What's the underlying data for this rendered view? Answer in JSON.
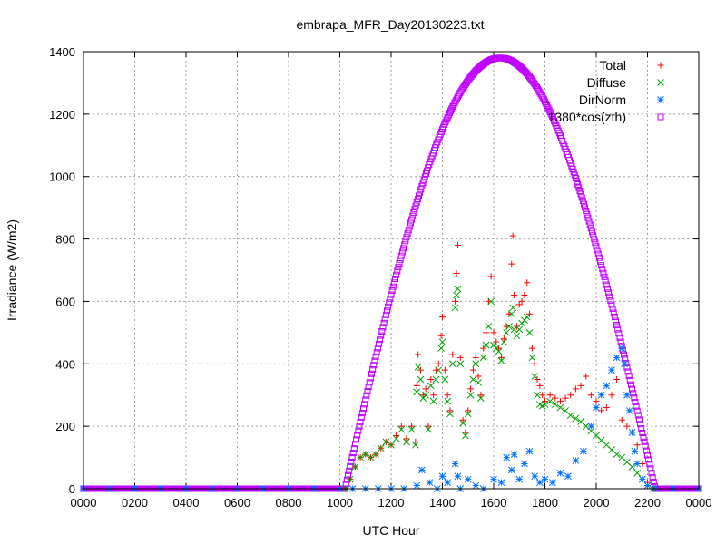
{
  "chart_data": {
    "type": "scatter",
    "title": "embrapa_MFR_Day20130223.txt",
    "xlabel": "UTC Hour",
    "ylabel": "Irradiance (W/m2)",
    "xlim": [
      0,
      24
    ],
    "ylim": [
      0,
      1400
    ],
    "x_ticks": [
      0,
      2,
      4,
      6,
      8,
      10,
      12,
      14,
      16,
      18,
      20,
      22,
      24
    ],
    "x_tick_labels": [
      "0000",
      "0200",
      "0400",
      "0600",
      "0800",
      "1000",
      "1200",
      "1400",
      "1600",
      "1800",
      "2000",
      "2200",
      "0000"
    ],
    "y_ticks": [
      0,
      200,
      400,
      600,
      800,
      1000,
      1200,
      1400
    ],
    "y_tick_labels": [
      "0",
      "200",
      "400",
      "600",
      "800",
      "1000",
      "1200",
      "1400"
    ],
    "grid": true,
    "legend_position": "top-right",
    "series": [
      {
        "name": "Total",
        "color": "#ff0000",
        "marker": "plus",
        "points": [
          [
            10.2,
            0
          ],
          [
            10.4,
            30
          ],
          [
            10.6,
            70
          ],
          [
            10.8,
            100
          ],
          [
            11.0,
            110
          ],
          [
            11.2,
            100
          ],
          [
            11.4,
            110
          ],
          [
            11.6,
            130
          ],
          [
            11.8,
            150
          ],
          [
            12.0,
            140
          ],
          [
            12.2,
            170
          ],
          [
            12.4,
            200
          ],
          [
            12.6,
            160
          ],
          [
            12.8,
            200
          ],
          [
            12.95,
            150
          ],
          [
            13.0,
            330
          ],
          [
            13.05,
            430
          ],
          [
            13.15,
            380
          ],
          [
            13.25,
            300
          ],
          [
            13.35,
            320
          ],
          [
            13.45,
            200
          ],
          [
            13.55,
            350
          ],
          [
            13.65,
            300
          ],
          [
            13.75,
            380
          ],
          [
            13.85,
            400
          ],
          [
            13.95,
            490
          ],
          [
            14.0,
            550
          ],
          [
            14.1,
            380
          ],
          [
            14.2,
            300
          ],
          [
            14.3,
            250
          ],
          [
            14.4,
            430
          ],
          [
            14.5,
            600
          ],
          [
            14.55,
            690
          ],
          [
            14.6,
            780
          ],
          [
            14.7,
            420
          ],
          [
            14.8,
            220
          ],
          [
            14.9,
            180
          ],
          [
            15.0,
            250
          ],
          [
            15.1,
            320
          ],
          [
            15.2,
            380
          ],
          [
            15.3,
            420
          ],
          [
            15.4,
            360
          ],
          [
            15.5,
            300
          ],
          [
            15.6,
            450
          ],
          [
            15.7,
            500
          ],
          [
            15.8,
            600
          ],
          [
            15.9,
            680
          ],
          [
            16.0,
            500
          ],
          [
            16.1,
            470
          ],
          [
            16.2,
            450
          ],
          [
            16.3,
            420
          ],
          [
            16.4,
            480
          ],
          [
            16.5,
            520
          ],
          [
            16.6,
            560
          ],
          [
            16.7,
            720
          ],
          [
            16.75,
            810
          ],
          [
            16.8,
            620
          ],
          [
            16.9,
            520
          ],
          [
            17.0,
            590
          ],
          [
            17.1,
            600
          ],
          [
            17.2,
            620
          ],
          [
            17.3,
            660
          ],
          [
            17.4,
            560
          ],
          [
            17.5,
            450
          ],
          [
            17.6,
            400
          ],
          [
            17.7,
            350
          ],
          [
            17.8,
            330
          ],
          [
            17.9,
            300
          ],
          [
            18.0,
            280
          ],
          [
            18.2,
            300
          ],
          [
            18.4,
            290
          ],
          [
            18.6,
            280
          ],
          [
            18.8,
            290
          ],
          [
            19.0,
            300
          ],
          [
            19.2,
            320
          ],
          [
            19.4,
            330
          ],
          [
            19.6,
            360
          ],
          [
            19.8,
            300
          ],
          [
            20.0,
            280
          ],
          [
            20.2,
            250
          ],
          [
            20.4,
            260
          ],
          [
            20.6,
            300
          ],
          [
            20.8,
            350
          ],
          [
            21.0,
            220
          ],
          [
            21.2,
            200
          ],
          [
            21.4,
            180
          ],
          [
            21.6,
            140
          ],
          [
            21.8,
            80
          ],
          [
            22.0,
            20
          ],
          [
            22.2,
            0
          ]
        ]
      },
      {
        "name": "Diffuse",
        "color": "#00a000",
        "marker": "cross",
        "points": [
          [
            10.2,
            0
          ],
          [
            10.4,
            30
          ],
          [
            10.6,
            70
          ],
          [
            10.8,
            100
          ],
          [
            11.0,
            110
          ],
          [
            11.2,
            100
          ],
          [
            11.4,
            110
          ],
          [
            11.6,
            130
          ],
          [
            11.8,
            150
          ],
          [
            12.0,
            140
          ],
          [
            12.2,
            160
          ],
          [
            12.4,
            190
          ],
          [
            12.6,
            150
          ],
          [
            12.8,
            190
          ],
          [
            12.95,
            140
          ],
          [
            13.0,
            310
          ],
          [
            13.05,
            390
          ],
          [
            13.15,
            350
          ],
          [
            13.25,
            290
          ],
          [
            13.35,
            300
          ],
          [
            13.45,
            190
          ],
          [
            13.55,
            330
          ],
          [
            13.65,
            280
          ],
          [
            13.75,
            350
          ],
          [
            13.85,
            380
          ],
          [
            13.95,
            450
          ],
          [
            14.0,
            470
          ],
          [
            14.1,
            350
          ],
          [
            14.2,
            280
          ],
          [
            14.3,
            240
          ],
          [
            14.4,
            400
          ],
          [
            14.5,
            580
          ],
          [
            14.55,
            620
          ],
          [
            14.6,
            640
          ],
          [
            14.7,
            400
          ],
          [
            14.8,
            210
          ],
          [
            14.9,
            170
          ],
          [
            15.0,
            240
          ],
          [
            15.1,
            300
          ],
          [
            15.2,
            350
          ],
          [
            15.3,
            400
          ],
          [
            15.4,
            340
          ],
          [
            15.5,
            290
          ],
          [
            15.6,
            420
          ],
          [
            15.7,
            460
          ],
          [
            15.8,
            520
          ],
          [
            15.9,
            600
          ],
          [
            16.0,
            460
          ],
          [
            16.1,
            450
          ],
          [
            16.2,
            440
          ],
          [
            16.3,
            410
          ],
          [
            16.4,
            470
          ],
          [
            16.5,
            500
          ],
          [
            16.6,
            520
          ],
          [
            16.7,
            560
          ],
          [
            16.75,
            580
          ],
          [
            16.8,
            510
          ],
          [
            16.9,
            490
          ],
          [
            17.0,
            510
          ],
          [
            17.1,
            530
          ],
          [
            17.2,
            540
          ],
          [
            17.3,
            550
          ],
          [
            17.4,
            500
          ],
          [
            17.5,
            420
          ],
          [
            17.6,
            360
          ],
          [
            17.7,
            300
          ],
          [
            17.8,
            270
          ],
          [
            17.9,
            265
          ],
          [
            18.0,
            270
          ],
          [
            18.2,
            280
          ],
          [
            18.4,
            270
          ],
          [
            18.6,
            260
          ],
          [
            18.8,
            250
          ],
          [
            19.0,
            235
          ],
          [
            19.2,
            225
          ],
          [
            19.4,
            215
          ],
          [
            19.6,
            200
          ],
          [
            19.8,
            185
          ],
          [
            20.0,
            170
          ],
          [
            20.2,
            155
          ],
          [
            20.4,
            140
          ],
          [
            20.6,
            125
          ],
          [
            20.8,
            110
          ],
          [
            21.0,
            100
          ],
          [
            21.2,
            85
          ],
          [
            21.4,
            70
          ],
          [
            21.6,
            50
          ],
          [
            21.8,
            30
          ],
          [
            22.0,
            10
          ],
          [
            22.2,
            0
          ]
        ]
      },
      {
        "name": "DirNorm",
        "color": "#0070ff",
        "marker": "star",
        "points": [
          [
            0,
            0
          ],
          [
            1,
            0
          ],
          [
            2,
            0
          ],
          [
            3,
            0
          ],
          [
            4,
            0
          ],
          [
            5,
            0
          ],
          [
            6,
            0
          ],
          [
            7,
            0
          ],
          [
            8,
            0
          ],
          [
            9,
            0
          ],
          [
            10,
            0
          ],
          [
            10.5,
            0
          ],
          [
            11,
            0
          ],
          [
            11.5,
            0
          ],
          [
            12,
            0
          ],
          [
            12.5,
            0
          ],
          [
            13.0,
            10
          ],
          [
            13.2,
            60
          ],
          [
            13.5,
            20
          ],
          [
            13.8,
            0
          ],
          [
            14.0,
            40
          ],
          [
            14.2,
            20
          ],
          [
            14.5,
            80
          ],
          [
            14.6,
            40
          ],
          [
            14.7,
            0
          ],
          [
            15.0,
            30
          ],
          [
            15.3,
            10
          ],
          [
            15.6,
            0
          ],
          [
            16.0,
            30
          ],
          [
            16.3,
            20
          ],
          [
            16.5,
            100
          ],
          [
            16.7,
            60
          ],
          [
            16.8,
            110
          ],
          [
            17.0,
            30
          ],
          [
            17.2,
            80
          ],
          [
            17.4,
            120
          ],
          [
            17.6,
            40
          ],
          [
            17.8,
            20
          ],
          [
            18.0,
            30
          ],
          [
            18.3,
            20
          ],
          [
            18.6,
            50
          ],
          [
            18.9,
            40
          ],
          [
            19.2,
            90
          ],
          [
            19.5,
            120
          ],
          [
            19.8,
            200
          ],
          [
            20.0,
            260
          ],
          [
            20.2,
            300
          ],
          [
            20.4,
            330
          ],
          [
            20.6,
            380
          ],
          [
            20.8,
            420
          ],
          [
            21.0,
            450
          ],
          [
            21.1,
            400
          ],
          [
            21.2,
            300
          ],
          [
            21.3,
            250
          ],
          [
            21.4,
            180
          ],
          [
            21.5,
            120
          ],
          [
            21.6,
            80
          ],
          [
            21.8,
            30
          ],
          [
            22.0,
            10
          ],
          [
            22.3,
            0
          ],
          [
            23,
            0
          ],
          [
            24,
            0
          ]
        ]
      },
      {
        "name": "1380*cos(zth)",
        "color": "#c000ff",
        "marker": "square",
        "curve": {
          "amplitude": 1380,
          "sunrise": 10.2,
          "sunset": 22.3,
          "peak": 16.25
        }
      }
    ]
  }
}
